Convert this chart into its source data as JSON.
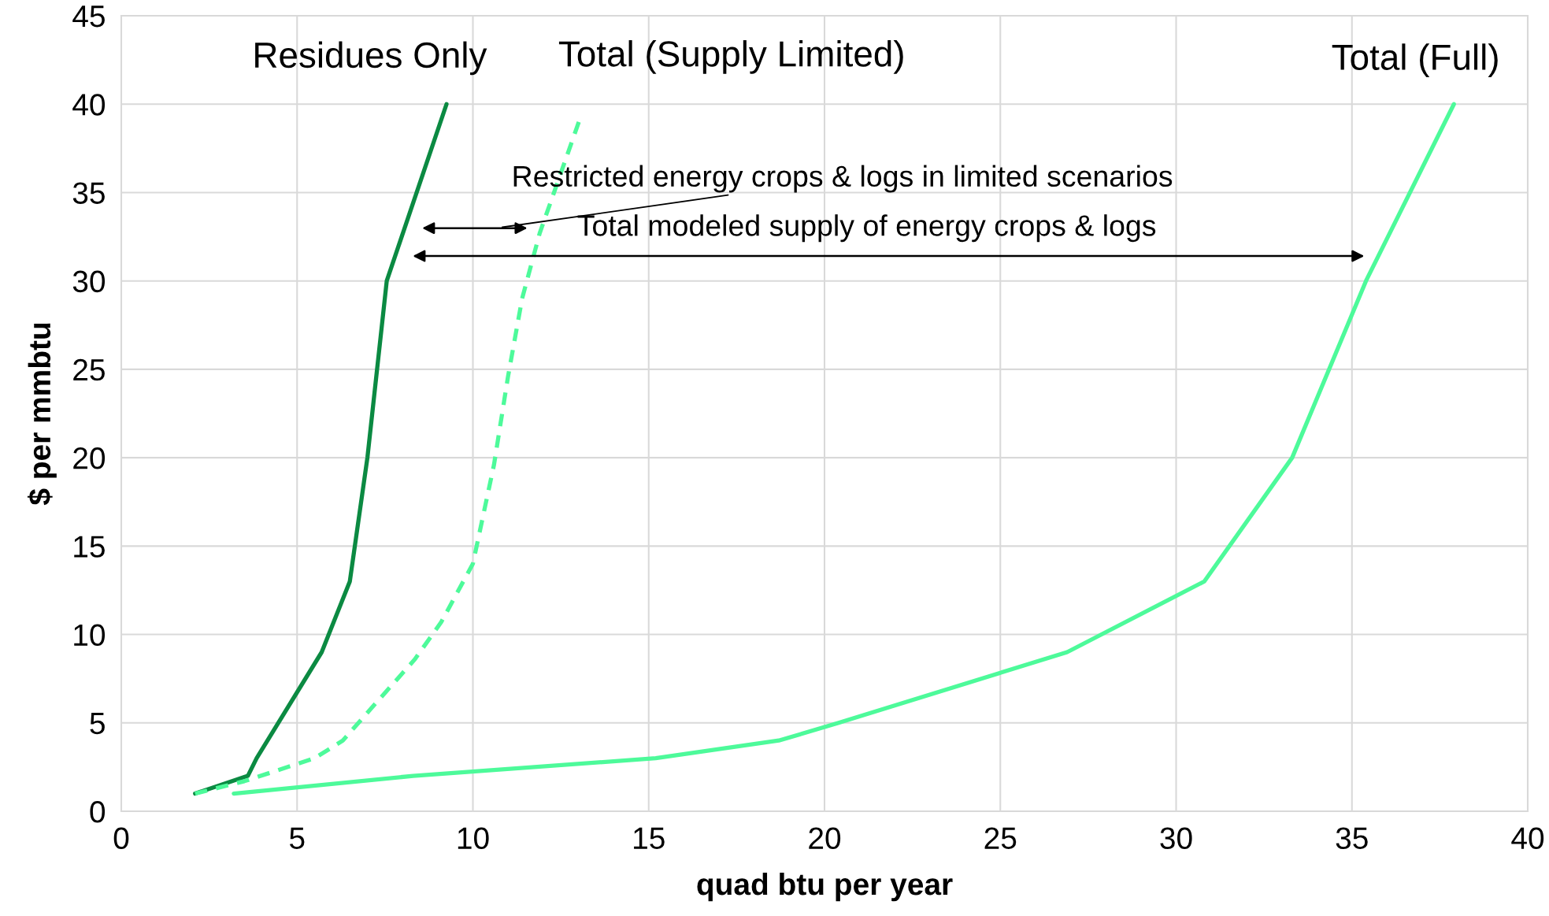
{
  "chart_data": {
    "type": "line",
    "xlabel": "quad btu per year",
    "ylabel": "$ per mmbtu",
    "xlim": [
      0,
      40
    ],
    "xticks": [
      0,
      5,
      10,
      15,
      20,
      25,
      30,
      35,
      40
    ],
    "ylim": [
      0,
      45
    ],
    "yticks": [
      0,
      5,
      10,
      15,
      20,
      25,
      30,
      35,
      40,
      45
    ],
    "grid": true,
    "legend": false,
    "marker": "none",
    "series": [
      {
        "name": "Residues Only",
        "color": "#0b8a42",
        "line_style": "solid",
        "x": [
          2.1,
          3.6,
          3.85,
          5.7,
          6.5,
          7.0,
          7.55,
          9.25
        ],
        "values": [
          1,
          2,
          3,
          9,
          13,
          20,
          30,
          40
        ]
      },
      {
        "name": "Total (Supply Limited)",
        "color": "#4dfa9a",
        "line_style": "dashed",
        "x": [
          2.1,
          3.5,
          5.5,
          6.3,
          7.1,
          8.35,
          9.1,
          10.0,
          10.6,
          11.0,
          11.4,
          11.9,
          13.05
        ],
        "values": [
          1,
          1.7,
          3,
          4,
          5.8,
          8.6,
          10.7,
          14,
          19.6,
          24.6,
          29,
          32.7,
          39.2
        ]
      },
      {
        "name": "Total (Full)",
        "color": "#4dfa9a",
        "line_style": "solid",
        "x": [
          3.2,
          8.3,
          15.2,
          18.7,
          20.4,
          26.9,
          30.8,
          33.3,
          35.4,
          37.9
        ],
        "values": [
          1,
          2,
          3,
          4,
          5,
          9,
          13,
          20,
          30,
          40
        ]
      }
    ],
    "annotations": [
      "Restricted energy crops & logs in limited scenarios",
      "Total modeled supply of energy crops & logs"
    ]
  }
}
